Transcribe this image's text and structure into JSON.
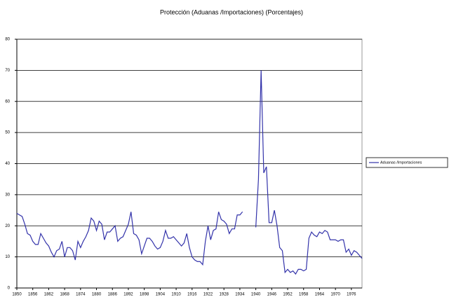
{
  "chart_data": {
    "type": "line",
    "title": "Protección (Aduanas /Importaciones) (Porcentajes)",
    "x": [
      1850,
      1851,
      1852,
      1853,
      1854,
      1855,
      1856,
      1857,
      1858,
      1859,
      1860,
      1861,
      1862,
      1863,
      1864,
      1865,
      1866,
      1867,
      1868,
      1869,
      1870,
      1871,
      1872,
      1873,
      1874,
      1875,
      1876,
      1877,
      1878,
      1879,
      1880,
      1881,
      1882,
      1883,
      1884,
      1885,
      1886,
      1887,
      1888,
      1889,
      1890,
      1891,
      1892,
      1893,
      1894,
      1895,
      1896,
      1897,
      1898,
      1899,
      1900,
      1901,
      1902,
      1903,
      1904,
      1905,
      1906,
      1907,
      1908,
      1909,
      1910,
      1911,
      1912,
      1913,
      1914,
      1915,
      1916,
      1917,
      1918,
      1919,
      1920,
      1921,
      1922,
      1923,
      1924,
      1925,
      1926,
      1927,
      1928,
      1929,
      1930,
      1931,
      1932,
      1933,
      1934,
      1935,
      1936,
      1937,
      1938,
      1939,
      1940,
      1941,
      1942,
      1943,
      1944,
      1945,
      1946,
      1947,
      1948,
      1949,
      1950,
      1951,
      1952,
      1953,
      1954,
      1955,
      1956,
      1957,
      1958,
      1959,
      1960,
      1961,
      1962,
      1963,
      1964,
      1965,
      1966,
      1967,
      1968,
      1969,
      1970,
      1971,
      1972,
      1973,
      1974,
      1975,
      1976,
      1977,
      1978,
      1979,
      1980
    ],
    "series": [
      {
        "name": "Aduanas /Importaciones",
        "color": "#3333aa",
        "values": [
          24,
          23.5,
          23,
          20.5,
          17.5,
          17,
          15,
          14,
          14,
          17.5,
          16,
          14.5,
          13.5,
          11.5,
          10,
          12,
          12.5,
          15,
          10,
          13,
          13,
          12,
          9,
          15,
          13,
          15,
          16.5,
          18.5,
          22.5,
          21.5,
          18.5,
          21.5,
          20.5,
          15.5,
          18,
          18,
          19,
          20,
          15,
          16,
          16.5,
          18.5,
          20.5,
          24.5,
          17.5,
          17,
          15.5,
          11,
          13.5,
          16,
          16,
          15,
          13.5,
          12.5,
          13,
          15,
          18.5,
          16,
          16,
          16.5,
          15.5,
          14.5,
          13.5,
          14.5,
          17.5,
          13,
          10,
          9,
          8.5,
          8.5,
          7.5,
          15,
          20,
          15.5,
          18.5,
          19,
          24.5,
          22,
          21.5,
          20.5,
          17.5,
          19,
          19,
          23.5,
          23.5,
          24.5,
          null,
          null,
          null,
          null,
          19.5,
          35,
          70,
          37,
          39,
          21,
          21,
          25,
          20,
          13,
          12,
          5,
          6,
          5,
          5.5,
          4.5,
          6,
          6,
          5.5,
          6,
          16,
          18,
          17,
          16.5,
          18,
          17.5,
          18.5,
          18,
          15.5,
          15.5,
          15.5,
          15,
          15.5,
          15.5,
          11.5,
          12.5,
          10.5,
          12,
          11.5,
          10.5,
          9.5
        ]
      }
    ],
    "xlim": [
      1850,
      1980
    ],
    "xticks": [
      1850,
      1856,
      1862,
      1868,
      1874,
      1880,
      1886,
      1892,
      1898,
      1904,
      1910,
      1916,
      1922,
      1928,
      1934,
      1940,
      1946,
      1952,
      1958,
      1964,
      1970,
      1976
    ],
    "ylim": [
      0,
      80
    ],
    "yticks": [
      0,
      10,
      20,
      30,
      40,
      50,
      60,
      70,
      80
    ],
    "grid": true,
    "legend": "right"
  }
}
